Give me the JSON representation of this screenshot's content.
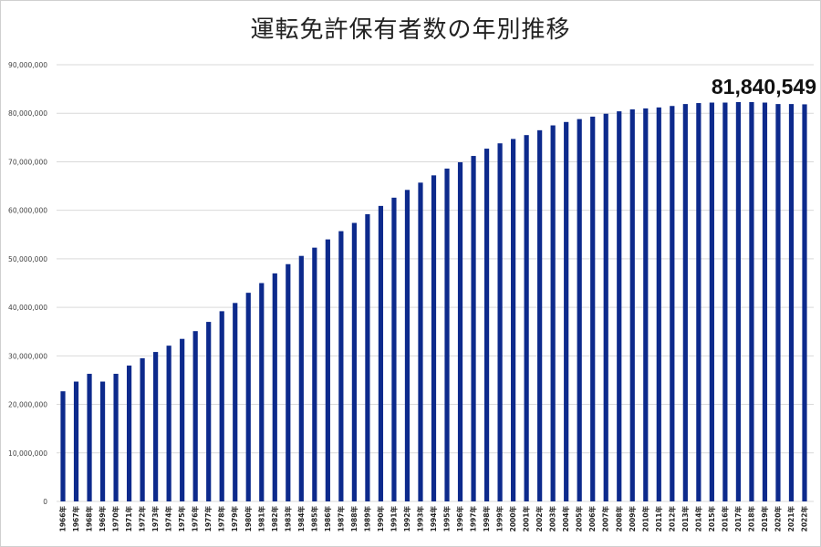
{
  "chart_data": {
    "type": "bar",
    "title": "運転免許保有者数の年別推移",
    "xlabel": "",
    "ylabel": "",
    "ylim": [
      0,
      90000000
    ],
    "grid": true,
    "bar_color": "#0d2a8c",
    "yticks": [
      "0",
      "10,000,000",
      "20,000,000",
      "30,000,000",
      "40,000,000",
      "50,000,000",
      "60,000,000",
      "70,000,000",
      "80,000,000",
      "90,000,000"
    ],
    "categories": [
      "1966年",
      "1967年",
      "1968年",
      "1969年",
      "1970年",
      "1971年",
      "1972年",
      "1973年",
      "1974年",
      "1975年",
      "1976年",
      "1977年",
      "1978年",
      "1979年",
      "1980年",
      "1981年",
      "1982年",
      "1983年",
      "1984年",
      "1985年",
      "1986年",
      "1987年",
      "1988年",
      "1989年",
      "1990年",
      "1991年",
      "1992年",
      "1993年",
      "1994年",
      "1995年",
      "1996年",
      "1997年",
      "1998年",
      "1999年",
      "2000年",
      "2001年",
      "2002年",
      "2003年",
      "2004年",
      "2005年",
      "2006年",
      "2007年",
      "2008年",
      "2009年",
      "2010年",
      "2011年",
      "2012年",
      "2013年",
      "2014年",
      "2015年",
      "2016年",
      "2017年",
      "2018年",
      "2019年",
      "2020年",
      "2021年",
      "2022年"
    ],
    "values": [
      22700000,
      24700000,
      26300000,
      24700000,
      26300000,
      28000000,
      29500000,
      30800000,
      32100000,
      33500000,
      35100000,
      37000000,
      39200000,
      40900000,
      43000000,
      45000000,
      47000000,
      48900000,
      50600000,
      52300000,
      54000000,
      55700000,
      57400000,
      59200000,
      60900000,
      62600000,
      64200000,
      65700000,
      67200000,
      68600000,
      69900000,
      71200000,
      72700000,
      73800000,
      74700000,
      75500000,
      76500000,
      77500000,
      78200000,
      78800000,
      79300000,
      79900000,
      80400000,
      80800000,
      81000000,
      81200000,
      81500000,
      81900000,
      82100000,
      82200000,
      82200000,
      82300000,
      82300000,
      82200000,
      81900000,
      81900000,
      81840549
    ],
    "annotation": "81,840,549"
  }
}
